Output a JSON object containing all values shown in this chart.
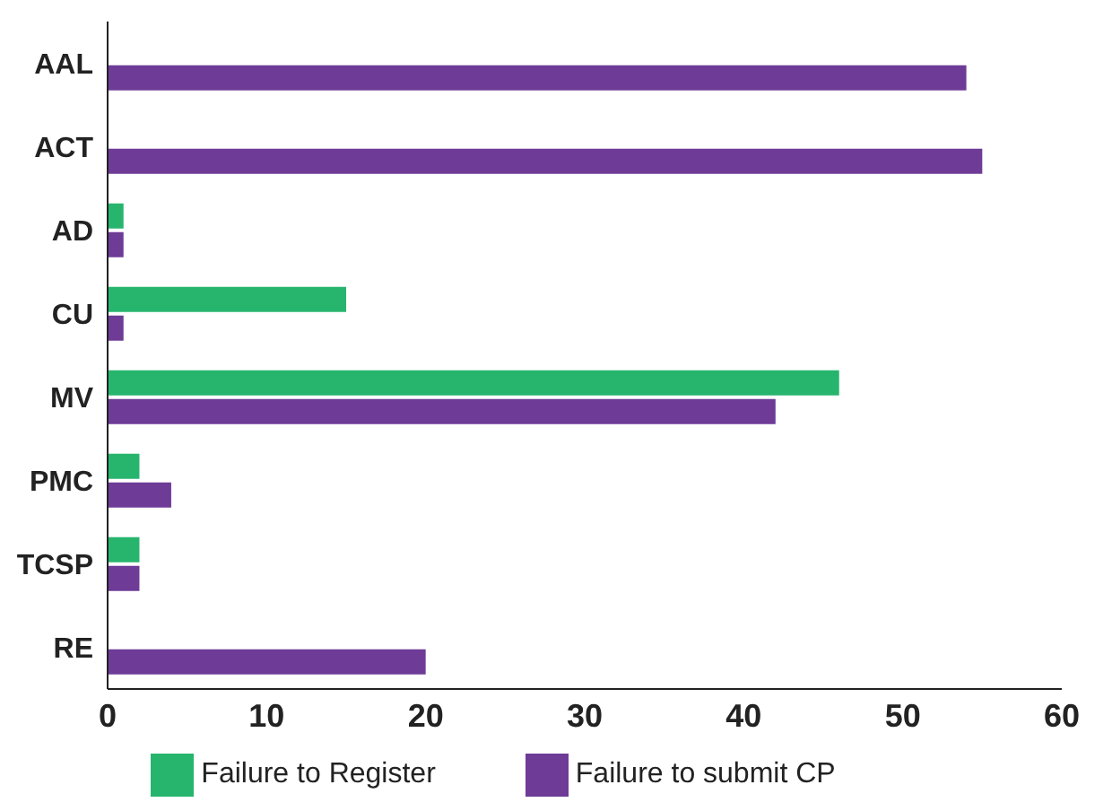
{
  "chart_data": {
    "type": "bar",
    "orientation": "horizontal",
    "categories": [
      "AAL",
      "ACT",
      "AD",
      "CU",
      "MV",
      "PMC",
      "TCSP",
      "RE"
    ],
    "series": [
      {
        "name": "Failure to Register",
        "color": "#27b56e",
        "values": [
          0,
          0,
          1,
          15,
          46,
          2,
          2,
          0
        ]
      },
      {
        "name": "Failure to submit CP",
        "color": "#6e3b96",
        "values": [
          54,
          55,
          1,
          1,
          42,
          4,
          2,
          20
        ]
      }
    ],
    "xlim": [
      0,
      60
    ],
    "xticks": [
      0,
      10,
      20,
      30,
      40,
      50,
      60
    ],
    "legend": "bottom"
  }
}
